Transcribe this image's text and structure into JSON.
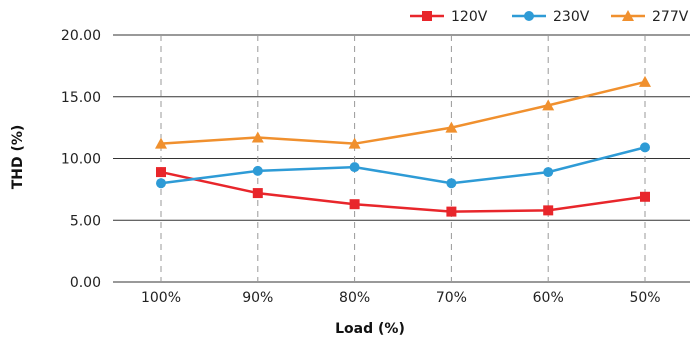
{
  "chart_data": {
    "type": "line",
    "title": "",
    "xlabel": "Load (%)",
    "ylabel": "THD (%)",
    "categories": [
      "100%",
      "90%",
      "80%",
      "70%",
      "60%",
      "50%"
    ],
    "ylim": [
      0,
      20
    ],
    "yticks": [
      "0.00",
      "5.00",
      "10.00",
      "15.00",
      "20.00"
    ],
    "ytick_values": [
      0,
      5,
      10,
      15,
      20
    ],
    "grid": {
      "horizontal": true,
      "vertical": "dashed"
    },
    "legend_position": "top-right",
    "series": [
      {
        "name": "120V",
        "color": "#e8262b",
        "marker": "square",
        "values": [
          8.9,
          7.2,
          6.3,
          5.7,
          5.8,
          6.9
        ]
      },
      {
        "name": "230V",
        "color": "#2e9bd6",
        "marker": "circle",
        "values": [
          8.0,
          9.0,
          9.3,
          8.0,
          8.9,
          10.9
        ]
      },
      {
        "name": "277V",
        "color": "#f0902e",
        "marker": "triangle",
        "values": [
          11.2,
          11.7,
          11.2,
          12.5,
          14.3,
          16.2
        ]
      }
    ]
  }
}
